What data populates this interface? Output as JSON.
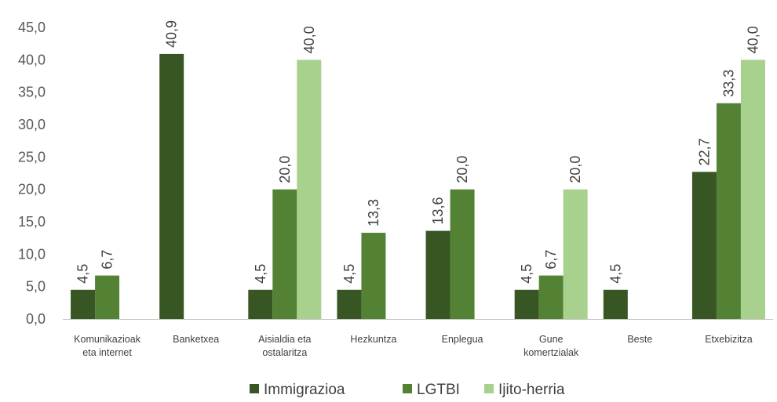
{
  "chart_data": {
    "type": "bar",
    "categories": [
      [
        "Komunikazioak",
        "eta internet"
      ],
      [
        "Banketxea"
      ],
      [
        "Aisialdia eta",
        "ostalaritza"
      ],
      [
        "Hezkuntza"
      ],
      [
        "Enplegua"
      ],
      [
        "Gune",
        "komertzialak"
      ],
      [
        "Beste"
      ],
      [
        "Etxebizitza"
      ]
    ],
    "series": [
      {
        "name": "Immigrazioa",
        "color": "#375623",
        "values": [
          4.5,
          40.9,
          4.5,
          4.5,
          13.6,
          4.5,
          4.5,
          22.7
        ],
        "labels": [
          "4,5",
          "40,9",
          "4,5",
          "4,5",
          "13,6",
          "4,5",
          "4,5",
          "22,7"
        ]
      },
      {
        "name": "LGTBI",
        "color": "#548235",
        "values": [
          6.7,
          0,
          20.0,
          13.3,
          20.0,
          6.7,
          0,
          33.3
        ],
        "labels": [
          "6,7",
          "",
          "20,0",
          "13,3",
          "20,0",
          "6,7",
          "",
          "33,3"
        ]
      },
      {
        "name": "Ijito-herria",
        "color": "#a9d18e",
        "values": [
          0,
          0,
          40.0,
          0,
          0,
          20.0,
          0,
          40.0
        ],
        "labels": [
          "",
          "",
          "40,0",
          "",
          "",
          "20,0",
          "",
          "40,0"
        ]
      }
    ],
    "y_ticks": [
      0,
      5,
      10,
      15,
      20,
      25,
      30,
      35,
      40,
      45
    ],
    "y_tick_labels": [
      "0,0",
      "5,0",
      "10,0",
      "15,0",
      "20,0",
      "25,0",
      "30,0",
      "35,0",
      "40,0",
      "45,0"
    ],
    "ylim": [
      0,
      45
    ],
    "title": "",
    "xlabel": "",
    "ylabel": "",
    "grid": false,
    "legend": "bottom"
  }
}
